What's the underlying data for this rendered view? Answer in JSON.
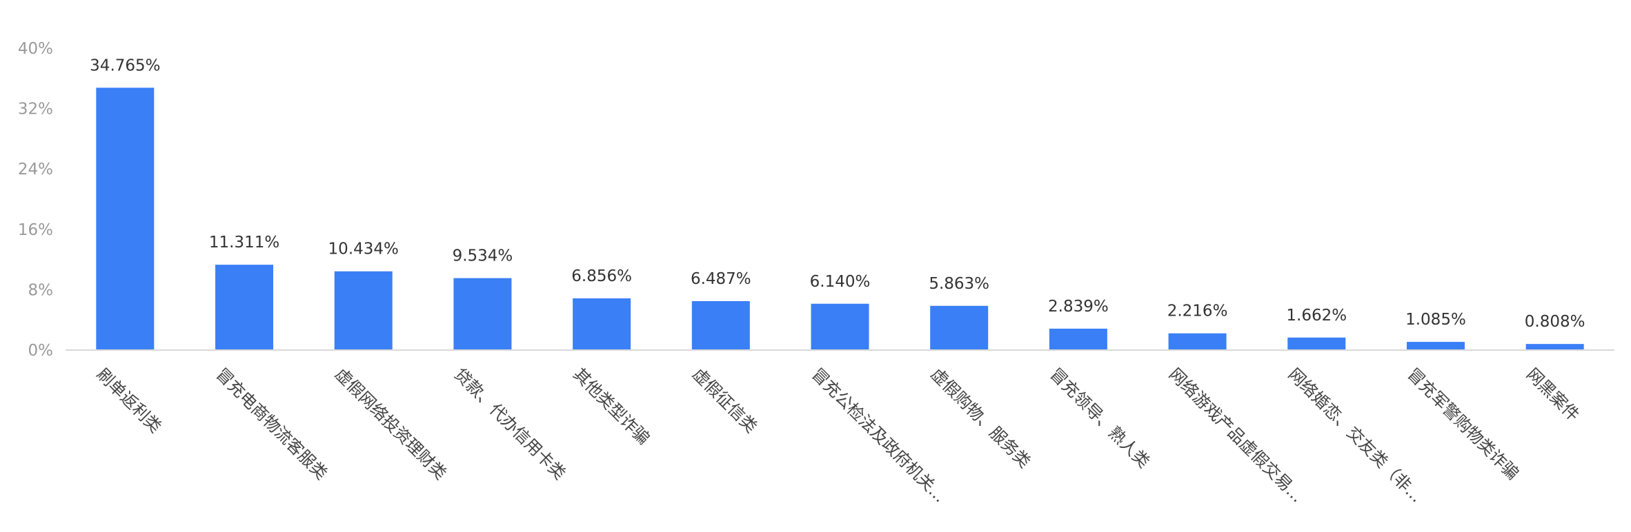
{
  "chart_data": {
    "type": "bar",
    "title": "",
    "xlabel": "",
    "ylabel": "",
    "ylim": [
      0,
      40
    ],
    "y_ticks": [
      0,
      8,
      16,
      24,
      32,
      40
    ],
    "y_tick_labels": [
      "0%",
      "8%",
      "16%",
      "24%",
      "32%",
      "40%"
    ],
    "grid": false,
    "legend": "none",
    "bar_color": "#3a7ff6",
    "categories": [
      "刷单返利类",
      "冒充电商物流客服类",
      "虚假网络投资理财类",
      "贷款、代办信用卡类",
      "其他类型诈骗",
      "虚假征信类",
      "冒充公检法及政府机关...",
      "虚假购物、服务类",
      "冒充领导、熟人类",
      "网络游戏产品虚假交易...",
      "网络婚恋、交友类（非...",
      "冒充军警购物类诈骗",
      "网黑案件"
    ],
    "values": [
      34.765,
      11.311,
      10.434,
      9.534,
      6.856,
      6.487,
      6.14,
      5.863,
      2.839,
      2.216,
      1.662,
      1.085,
      0.808
    ],
    "value_labels": [
      "34.765%",
      "11.311%",
      "10.434%",
      "9.534%",
      "6.856%",
      "6.487%",
      "6.140%",
      "5.863%",
      "2.839%",
      "2.216%",
      "1.662%",
      "1.085%",
      "0.808%"
    ]
  }
}
